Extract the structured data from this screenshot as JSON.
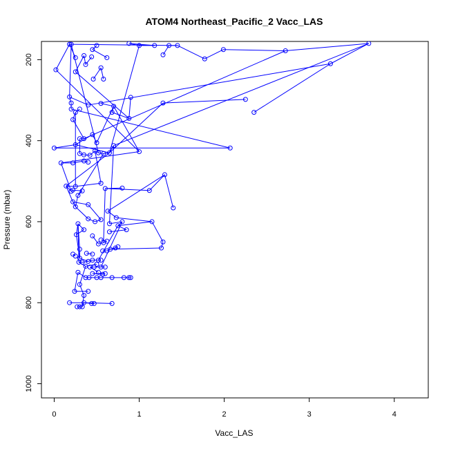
{
  "chart_data": {
    "type": "line",
    "title": "ATOM4 Northeast_Pacific_2 Vacc_LAS",
    "xlabel": "Vacc_LAS",
    "ylabel": "Pressure (mbar)",
    "xlim": [
      -0.15,
      4.4
    ],
    "ylim": [
      1035,
      155
    ],
    "y_reversed": true,
    "x_ticks": [
      0,
      1,
      2,
      3,
      4
    ],
    "x_tick_labels": [
      "0",
      "1",
      "2",
      "3",
      "4"
    ],
    "y_ticks": [
      200,
      400,
      600,
      800,
      1000
    ],
    "y_tick_labels": [
      "200",
      "400",
      "600",
      "800",
      "1000"
    ],
    "grid": false,
    "legend": "none",
    "series": [
      {
        "color": "#0000ff",
        "marker": "open-circle",
        "points": [
          [
            0.27,
            810
          ],
          [
            0.3,
            810
          ],
          [
            0.33,
            810
          ],
          [
            0.35,
            800
          ],
          [
            0.44,
            802
          ],
          [
            0.47,
            802
          ],
          [
            0.68,
            802
          ],
          [
            0.18,
            800
          ],
          [
            0.24,
            772
          ],
          [
            0.4,
            772
          ],
          [
            0.35,
            782
          ],
          [
            0.3,
            755
          ],
          [
            0.28,
            725
          ],
          [
            0.37,
            738
          ],
          [
            0.41,
            738
          ],
          [
            0.5,
            738
          ],
          [
            0.55,
            738
          ],
          [
            0.68,
            738
          ],
          [
            0.82,
            738
          ],
          [
            0.88,
            738
          ],
          [
            0.9,
            738
          ],
          [
            0.57,
            730
          ],
          [
            0.45,
            728
          ],
          [
            0.6,
            728
          ],
          [
            0.52,
            725
          ],
          [
            0.42,
            712
          ],
          [
            0.47,
            712
          ],
          [
            0.55,
            712
          ],
          [
            0.6,
            712
          ],
          [
            0.37,
            710
          ],
          [
            0.5,
            705
          ],
          [
            0.29,
            700
          ],
          [
            0.33,
            700
          ],
          [
            0.4,
            698
          ],
          [
            0.45,
            695
          ],
          [
            0.52,
            695
          ],
          [
            0.55,
            695
          ],
          [
            0.3,
            690
          ],
          [
            0.22,
            680
          ],
          [
            0.25,
            685
          ],
          [
            0.45,
            680
          ],
          [
            0.38,
            678
          ],
          [
            0.57,
            672
          ],
          [
            0.62,
            672
          ],
          [
            0.66,
            668
          ],
          [
            0.72,
            665
          ],
          [
            0.75,
            662
          ],
          [
            0.3,
            668
          ],
          [
            0.52,
            655
          ],
          [
            0.58,
            652
          ],
          [
            0.62,
            648
          ],
          [
            0.55,
            645
          ],
          [
            0.45,
            635
          ],
          [
            0.26,
            632
          ],
          [
            0.65,
            625
          ],
          [
            0.85,
            620
          ],
          [
            0.75,
            610
          ],
          [
            0.8,
            600
          ],
          [
            0.65,
            605
          ],
          [
            0.35,
            620
          ],
          [
            0.48,
            600
          ],
          [
            0.4,
            593
          ],
          [
            0.28,
            605
          ],
          [
            0.55,
            595
          ],
          [
            0.63,
            574
          ],
          [
            0.73,
            590
          ],
          [
            1.15,
            600
          ],
          [
            1.28,
            650
          ],
          [
            1.26,
            665
          ],
          [
            1.4,
            566
          ],
          [
            1.3,
            484
          ],
          [
            1.12,
            523
          ],
          [
            0.6,
            518
          ],
          [
            0.8,
            517
          ],
          [
            0.25,
            563
          ],
          [
            0.22,
            551
          ],
          [
            0.4,
            558
          ],
          [
            0.28,
            535
          ],
          [
            0.33,
            524
          ],
          [
            0.22,
            522
          ],
          [
            0.2,
            525
          ],
          [
            0.14,
            512
          ],
          [
            0.25,
            513
          ],
          [
            0.55,
            505
          ],
          [
            0.08,
            455
          ],
          [
            0.22,
            455
          ],
          [
            0.35,
            450
          ],
          [
            0.4,
            453
          ],
          [
            0.3,
            432
          ],
          [
            0.35,
            435
          ],
          [
            0.42,
            436
          ],
          [
            0.48,
            425
          ],
          [
            0.52,
            430
          ],
          [
            0.58,
            432
          ],
          [
            0.65,
            430
          ],
          [
            0.7,
            412
          ],
          [
            1.0,
            427
          ],
          [
            2.07,
            418
          ],
          [
            0.0,
            418
          ],
          [
            0.25,
            410
          ],
          [
            0.5,
            405
          ],
          [
            0.45,
            385
          ],
          [
            0.3,
            395
          ],
          [
            0.35,
            395
          ],
          [
            0.22,
            348
          ],
          [
            0.25,
            330
          ],
          [
            0.3,
            322
          ],
          [
            0.2,
            322
          ],
          [
            0.2,
            307
          ],
          [
            0.18,
            292
          ],
          [
            0.4,
            312
          ],
          [
            0.55,
            308
          ],
          [
            0.7,
            315
          ],
          [
            0.68,
            330
          ],
          [
            0.88,
            345
          ],
          [
            0.9,
            293
          ],
          [
            1.28,
            307
          ],
          [
            2.25,
            298
          ],
          [
            2.35,
            330
          ],
          [
            3.25,
            210
          ],
          [
            3.7,
            160
          ],
          [
            2.72,
            178
          ],
          [
            1.99,
            175
          ],
          [
            1.77,
            198
          ],
          [
            1.45,
            165
          ],
          [
            1.35,
            165
          ],
          [
            1.28,
            188
          ],
          [
            1.18,
            165
          ],
          [
            1.0,
            165
          ],
          [
            0.88,
            160
          ],
          [
            0.58,
            248
          ],
          [
            0.55,
            220
          ],
          [
            0.46,
            248
          ],
          [
            0.44,
            193
          ],
          [
            0.37,
            212
          ],
          [
            0.35,
            190
          ],
          [
            0.25,
            230
          ],
          [
            0.25,
            195
          ],
          [
            0.18,
            162
          ],
          [
            0.2,
            162
          ],
          [
            0.5,
            165
          ],
          [
            0.45,
            175
          ],
          [
            0.62,
            195
          ],
          [
            0.02,
            225
          ]
        ],
        "segments": [
          [
            0,
            1
          ],
          [
            1,
            2
          ],
          [
            2,
            3
          ],
          [
            3,
            4
          ],
          [
            4,
            5
          ],
          [
            6,
            3
          ],
          [
            7,
            3
          ],
          [
            8,
            9
          ],
          [
            10,
            11
          ],
          [
            12,
            13
          ],
          [
            13,
            14
          ],
          [
            14,
            15
          ],
          [
            15,
            16
          ],
          [
            16,
            17
          ],
          [
            17,
            18
          ],
          [
            18,
            19
          ],
          [
            19,
            20
          ],
          [
            21,
            22
          ],
          [
            22,
            23
          ],
          [
            24,
            25
          ],
          [
            25,
            26
          ],
          [
            26,
            27
          ],
          [
            27,
            28
          ],
          [
            29,
            30
          ],
          [
            31,
            32
          ],
          [
            32,
            33
          ],
          [
            33,
            34
          ],
          [
            34,
            35
          ],
          [
            35,
            36
          ],
          [
            37,
            33
          ],
          [
            38,
            39
          ],
          [
            40,
            41
          ],
          [
            42,
            43
          ],
          [
            43,
            44
          ],
          [
            44,
            45
          ],
          [
            46,
            44
          ],
          [
            47,
            37
          ],
          [
            48,
            49
          ],
          [
            49,
            50
          ],
          [
            50,
            51
          ],
          [
            52,
            48
          ],
          [
            53,
            37
          ],
          [
            54,
            55
          ],
          [
            55,
            56
          ],
          [
            56,
            57
          ],
          [
            57,
            58
          ],
          [
            59,
            53
          ],
          [
            60,
            61
          ],
          [
            62,
            59
          ],
          [
            63,
            60
          ],
          [
            64,
            65
          ],
          [
            65,
            66
          ],
          [
            66,
            67
          ],
          [
            67,
            68
          ],
          [
            69,
            70
          ],
          [
            70,
            71
          ],
          [
            71,
            72
          ],
          [
            72,
            73
          ],
          [
            74,
            75
          ],
          [
            75,
            76
          ],
          [
            77,
            78
          ],
          [
            78,
            79
          ],
          [
            79,
            80
          ],
          [
            81,
            82
          ],
          [
            82,
            83
          ],
          [
            84,
            85
          ],
          [
            85,
            86
          ],
          [
            86,
            87
          ],
          [
            88,
            89
          ],
          [
            89,
            90
          ],
          [
            90,
            91
          ],
          [
            91,
            92
          ],
          [
            92,
            93
          ],
          [
            93,
            94
          ],
          [
            94,
            95
          ],
          [
            96,
            84
          ],
          [
            97,
            98
          ],
          [
            98,
            99
          ],
          [
            100,
            101
          ],
          [
            101,
            99
          ],
          [
            102,
            103
          ],
          [
            103,
            104
          ],
          [
            104,
            105
          ],
          [
            105,
            106
          ],
          [
            107,
            108
          ],
          [
            108,
            109
          ],
          [
            109,
            110
          ],
          [
            111,
            112
          ],
          [
            112,
            113
          ],
          [
            113,
            114
          ],
          [
            114,
            115
          ],
          [
            116,
            117
          ],
          [
            118,
            119
          ],
          [
            119,
            120
          ],
          [
            120,
            121
          ],
          [
            121,
            122
          ],
          [
            122,
            123
          ],
          [
            123,
            124
          ],
          [
            124,
            125
          ],
          [
            125,
            126
          ],
          [
            127,
            128
          ],
          [
            128,
            129
          ],
          [
            130,
            131
          ],
          [
            131,
            132
          ],
          [
            133,
            134
          ],
          [
            134,
            135
          ],
          [
            135,
            136
          ],
          [
            137,
            138
          ],
          [
            138,
            139
          ],
          [
            140,
            141
          ],
          [
            141,
            142
          ],
          [
            143,
            96
          ],
          [
            143,
            138
          ],
          [
            99,
            94
          ],
          [
            94,
            81
          ],
          [
            2,
            10
          ],
          [
            8,
            12
          ],
          [
            11,
            29
          ],
          [
            29,
            31
          ],
          [
            53,
            62
          ],
          [
            80,
            81
          ],
          [
            81,
            75
          ],
          [
            84,
            80
          ],
          [
            105,
            82
          ],
          [
            120,
            95
          ],
          [
            112,
            96
          ],
          [
            124,
            138
          ],
          [
            116,
            94
          ],
          [
            121,
            103
          ],
          [
            70,
            64
          ],
          [
            66,
            56
          ],
          [
            56,
            35
          ],
          [
            61,
            74
          ],
          [
            74,
            77
          ],
          [
            83,
            91
          ],
          [
            88,
            102
          ],
          [
            100,
            112
          ],
          [
            136,
            114
          ],
          [
            139,
            92
          ],
          [
            68,
            44
          ],
          [
            72,
            49
          ],
          [
            57,
            27
          ],
          [
            47,
            62
          ],
          [
            58,
            95
          ],
          [
            77,
            93
          ],
          [
            97,
            107
          ],
          [
            109,
            139
          ],
          [
            63,
            76
          ],
          [
            129,
            127
          ],
          [
            128,
            94
          ],
          [
            110,
            119
          ],
          [
            31,
            62
          ]
        ]
      }
    ]
  }
}
